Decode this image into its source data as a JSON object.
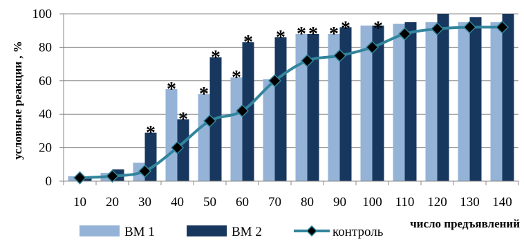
{
  "chart_data": {
    "type": "bar",
    "title": "",
    "xlabel": "число предъявлений",
    "ylabel": "условные реакции , %",
    "ylim": [
      0,
      100
    ],
    "yticks": [
      0,
      20,
      40,
      60,
      80,
      100
    ],
    "grid": "horizontal",
    "legend_position": "bottom",
    "categories": [
      "10",
      "20",
      "30",
      "40",
      "50",
      "60",
      "70",
      "80",
      "90",
      "100",
      "110",
      "120",
      "130",
      "140"
    ],
    "series": [
      {
        "name": "ВМ 1",
        "kind": "bar",
        "color": "#95B3D7",
        "values": [
          3,
          5,
          11,
          55,
          52,
          62,
          61,
          88,
          88,
          93,
          94,
          95,
          95,
          95
        ]
      },
      {
        "name": "ВМ 2",
        "kind": "bar",
        "color": "#17375E",
        "values": [
          2,
          7,
          29,
          37,
          74,
          83,
          86,
          88,
          92,
          93,
          95,
          100,
          98,
          100
        ]
      },
      {
        "name": "контроль",
        "kind": "line",
        "color": "#31859C",
        "marker_color": "#000000",
        "values": [
          2,
          3,
          6,
          20,
          36,
          42,
          60,
          72,
          75,
          80,
          88,
          91,
          92,
          92
        ]
      }
    ],
    "annotations": {
      "symbol": "*",
      "marks": [
        {
          "category": "30",
          "series": "ВМ 2"
        },
        {
          "category": "40",
          "series": "ВМ 1"
        },
        {
          "category": "40",
          "series": "ВМ 2"
        },
        {
          "category": "50",
          "series": "ВМ 1"
        },
        {
          "category": "50",
          "series": "ВМ 2"
        },
        {
          "category": "60",
          "series": "ВМ 1"
        },
        {
          "category": "60",
          "series": "ВМ 2"
        },
        {
          "category": "70",
          "series": "ВМ 2"
        },
        {
          "category": "80",
          "series": "ВМ 1"
        },
        {
          "category": "80",
          "series": "ВМ 2"
        },
        {
          "category": "90",
          "series": "ВМ 1"
        },
        {
          "category": "90",
          "series": "ВМ 2"
        },
        {
          "category": "100",
          "series": "ВМ 2"
        }
      ]
    }
  }
}
